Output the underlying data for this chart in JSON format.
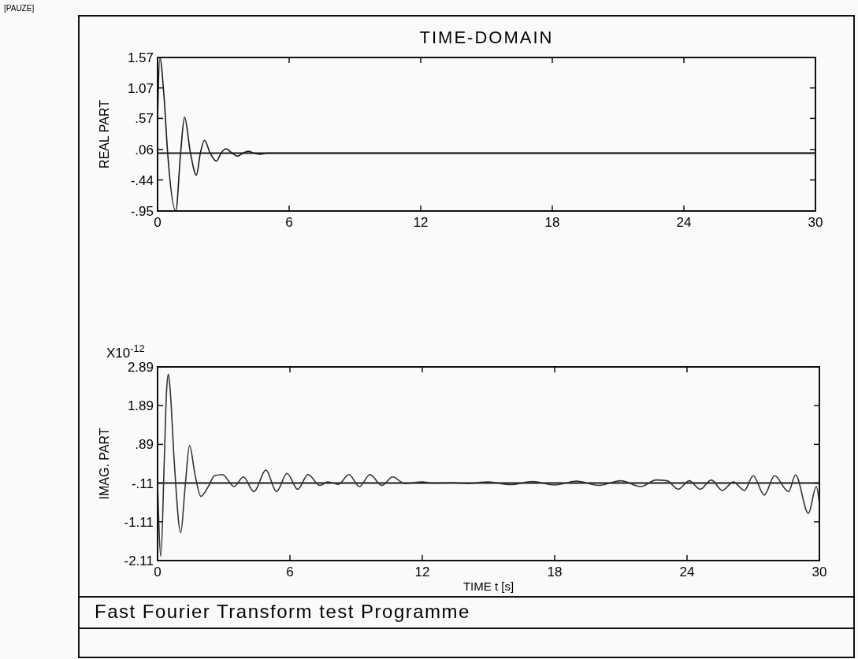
{
  "chart_data": [
    {
      "type": "line",
      "title": "TIME-DOMAIN",
      "ylabel": "REAL PART",
      "annotations": [
        "[PAUZE]"
      ],
      "series": [
        {
          "color": "#1a1a1a",
          "x": [
            0,
            0.1,
            0.3,
            0.46,
            0.83,
            1.05,
            1.23,
            1.5,
            1.77,
            1.95,
            2.14,
            2.4,
            2.68,
            2.9,
            3.12,
            3.4,
            3.65,
            3.9,
            4.13,
            4.4,
            4.67,
            5.0,
            6,
            12,
            18,
            24,
            30
          ],
          "values": [
            0.5,
            1.57,
            0.9,
            0,
            -0.95,
            0,
            0.59,
            0,
            -0.36,
            0,
            0.21,
            0,
            -0.13,
            0,
            0.07,
            0,
            -0.05,
            0,
            0.03,
            0,
            -0.02,
            0,
            0,
            0,
            0,
            0,
            0
          ]
        }
      ],
      "xlim": [
        0,
        30
      ],
      "xticks": [
        0,
        6,
        12,
        18,
        24,
        30
      ],
      "ylim": [
        -0.95,
        1.57
      ],
      "yticks": [
        {
          "value": -0.95,
          "label": "-.95"
        },
        {
          "value": -0.44,
          "label": "-.44"
        },
        {
          "value": 0.06,
          "label": ".06"
        },
        {
          "value": 0.57,
          "label": ".57"
        },
        {
          "value": 1.07,
          "label": "1.07"
        },
        {
          "value": 1.57,
          "label": "1.57"
        }
      ],
      "ref_lines": [
        {
          "axis": "y",
          "value": 0,
          "color": "#1a1a1a"
        }
      ]
    },
    {
      "type": "line",
      "xlabel": "TIME t [s]",
      "ylabel": "IMAG. PART",
      "annotations": [
        "X10$^{-12}$",
        "Fast Fourier Transform test Programme"
      ],
      "series": [
        {
          "color": "#333333",
          "x": [
            0,
            0.15,
            0.3,
            0.41,
            0.49,
            0.57,
            0.75,
            1.05,
            1.25,
            1.45,
            1.7,
            1.96,
            2.3,
            2.58,
            2.94,
            3.47,
            3.89,
            4.37,
            4.91,
            5.39,
            5.87,
            6.35,
            6.82,
            7.36,
            7.72,
            8.2,
            8.67,
            9.15,
            9.63,
            10.17,
            10.65,
            11.2,
            12.0,
            12.5,
            13.3,
            14.0,
            15.0,
            16.0,
            17.0,
            18.0,
            19.0,
            20.0,
            21.0,
            21.9,
            22.6,
            23.1,
            23.6,
            24.1,
            24.6,
            25.1,
            25.6,
            26.1,
            26.6,
            27.0,
            27.5,
            27.97,
            28.6,
            28.92,
            29.5,
            29.86,
            30
          ],
          "values": [
            -0.11,
            -2.0,
            0.4,
            2.3,
            2.7,
            2.3,
            0.5,
            -1.39,
            -0.2,
            0.86,
            0.1,
            -0.45,
            -0.2,
            0.08,
            0.11,
            -0.2,
            0.05,
            -0.33,
            0.23,
            -0.33,
            0.14,
            -0.27,
            0.11,
            -0.17,
            -0.08,
            -0.14,
            0.11,
            -0.2,
            0.11,
            -0.17,
            0.05,
            -0.12,
            -0.08,
            -0.11,
            -0.1,
            -0.12,
            -0.08,
            -0.15,
            -0.07,
            -0.16,
            -0.06,
            -0.17,
            -0.05,
            -0.2,
            -0.03,
            -0.05,
            -0.27,
            -0.05,
            -0.27,
            -0.03,
            -0.3,
            -0.08,
            -0.3,
            0.08,
            -0.42,
            0.08,
            -0.33,
            0.1,
            -0.89,
            -0.2,
            -0.64
          ]
        }
      ],
      "xlim": [
        0,
        30
      ],
      "xticks": [
        0,
        6,
        12,
        18,
        24,
        30
      ],
      "ylim": [
        -2.11,
        2.89
      ],
      "yticks": [
        {
          "value": -2.11,
          "label": "-2.11"
        },
        {
          "value": -1.11,
          "label": "-1.11"
        },
        {
          "value": -0.11,
          "label": "-.11"
        },
        {
          "value": 0.89,
          "label": ".89"
        },
        {
          "value": 1.89,
          "label": "1.89"
        },
        {
          "value": 2.89,
          "label": "2.89"
        }
      ],
      "ref_lines": [
        {
          "axis": "y",
          "value": -0.11,
          "color": "#1a1a1a"
        }
      ]
    }
  ]
}
